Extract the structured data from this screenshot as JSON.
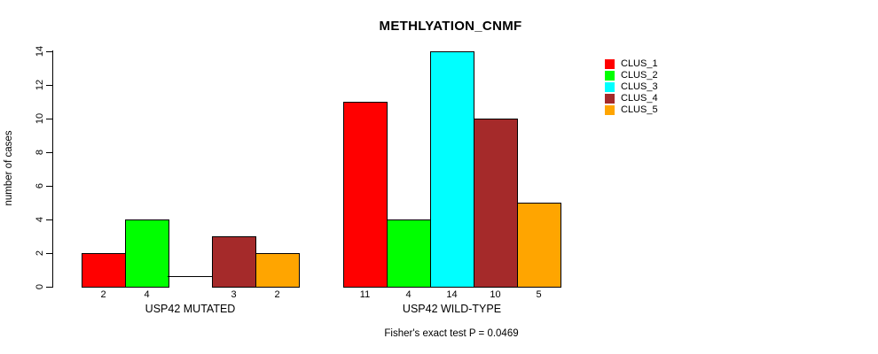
{
  "chart_data": {
    "type": "bar",
    "title": "METHLYATION_CNMF",
    "ylabel": "number of cases",
    "annotation": "Fisher's exact test P = 0.0469",
    "ylim": [
      0,
      14
    ],
    "yticks": [
      0,
      2,
      4,
      6,
      8,
      10,
      12,
      14
    ],
    "grid": false,
    "legend_position": "top-right",
    "series_names": [
      "CLUS_1",
      "CLUS_2",
      "CLUS_3",
      "CLUS_4",
      "CLUS_5"
    ],
    "series_colors": [
      "#ff0000",
      "#00ff00",
      "#00ffff",
      "#a52a2a",
      "#ffa500"
    ],
    "groups": [
      {
        "label": "USP42 MUTATED",
        "values": [
          2,
          4,
          0,
          3,
          2
        ],
        "value_labels": [
          "2",
          "4",
          "",
          "3",
          "2"
        ]
      },
      {
        "label": "USP42 WILD-TYPE",
        "values": [
          11,
          4,
          14,
          10,
          5
        ],
        "value_labels": [
          "11",
          "4",
          "14",
          "10",
          "5"
        ]
      }
    ]
  }
}
